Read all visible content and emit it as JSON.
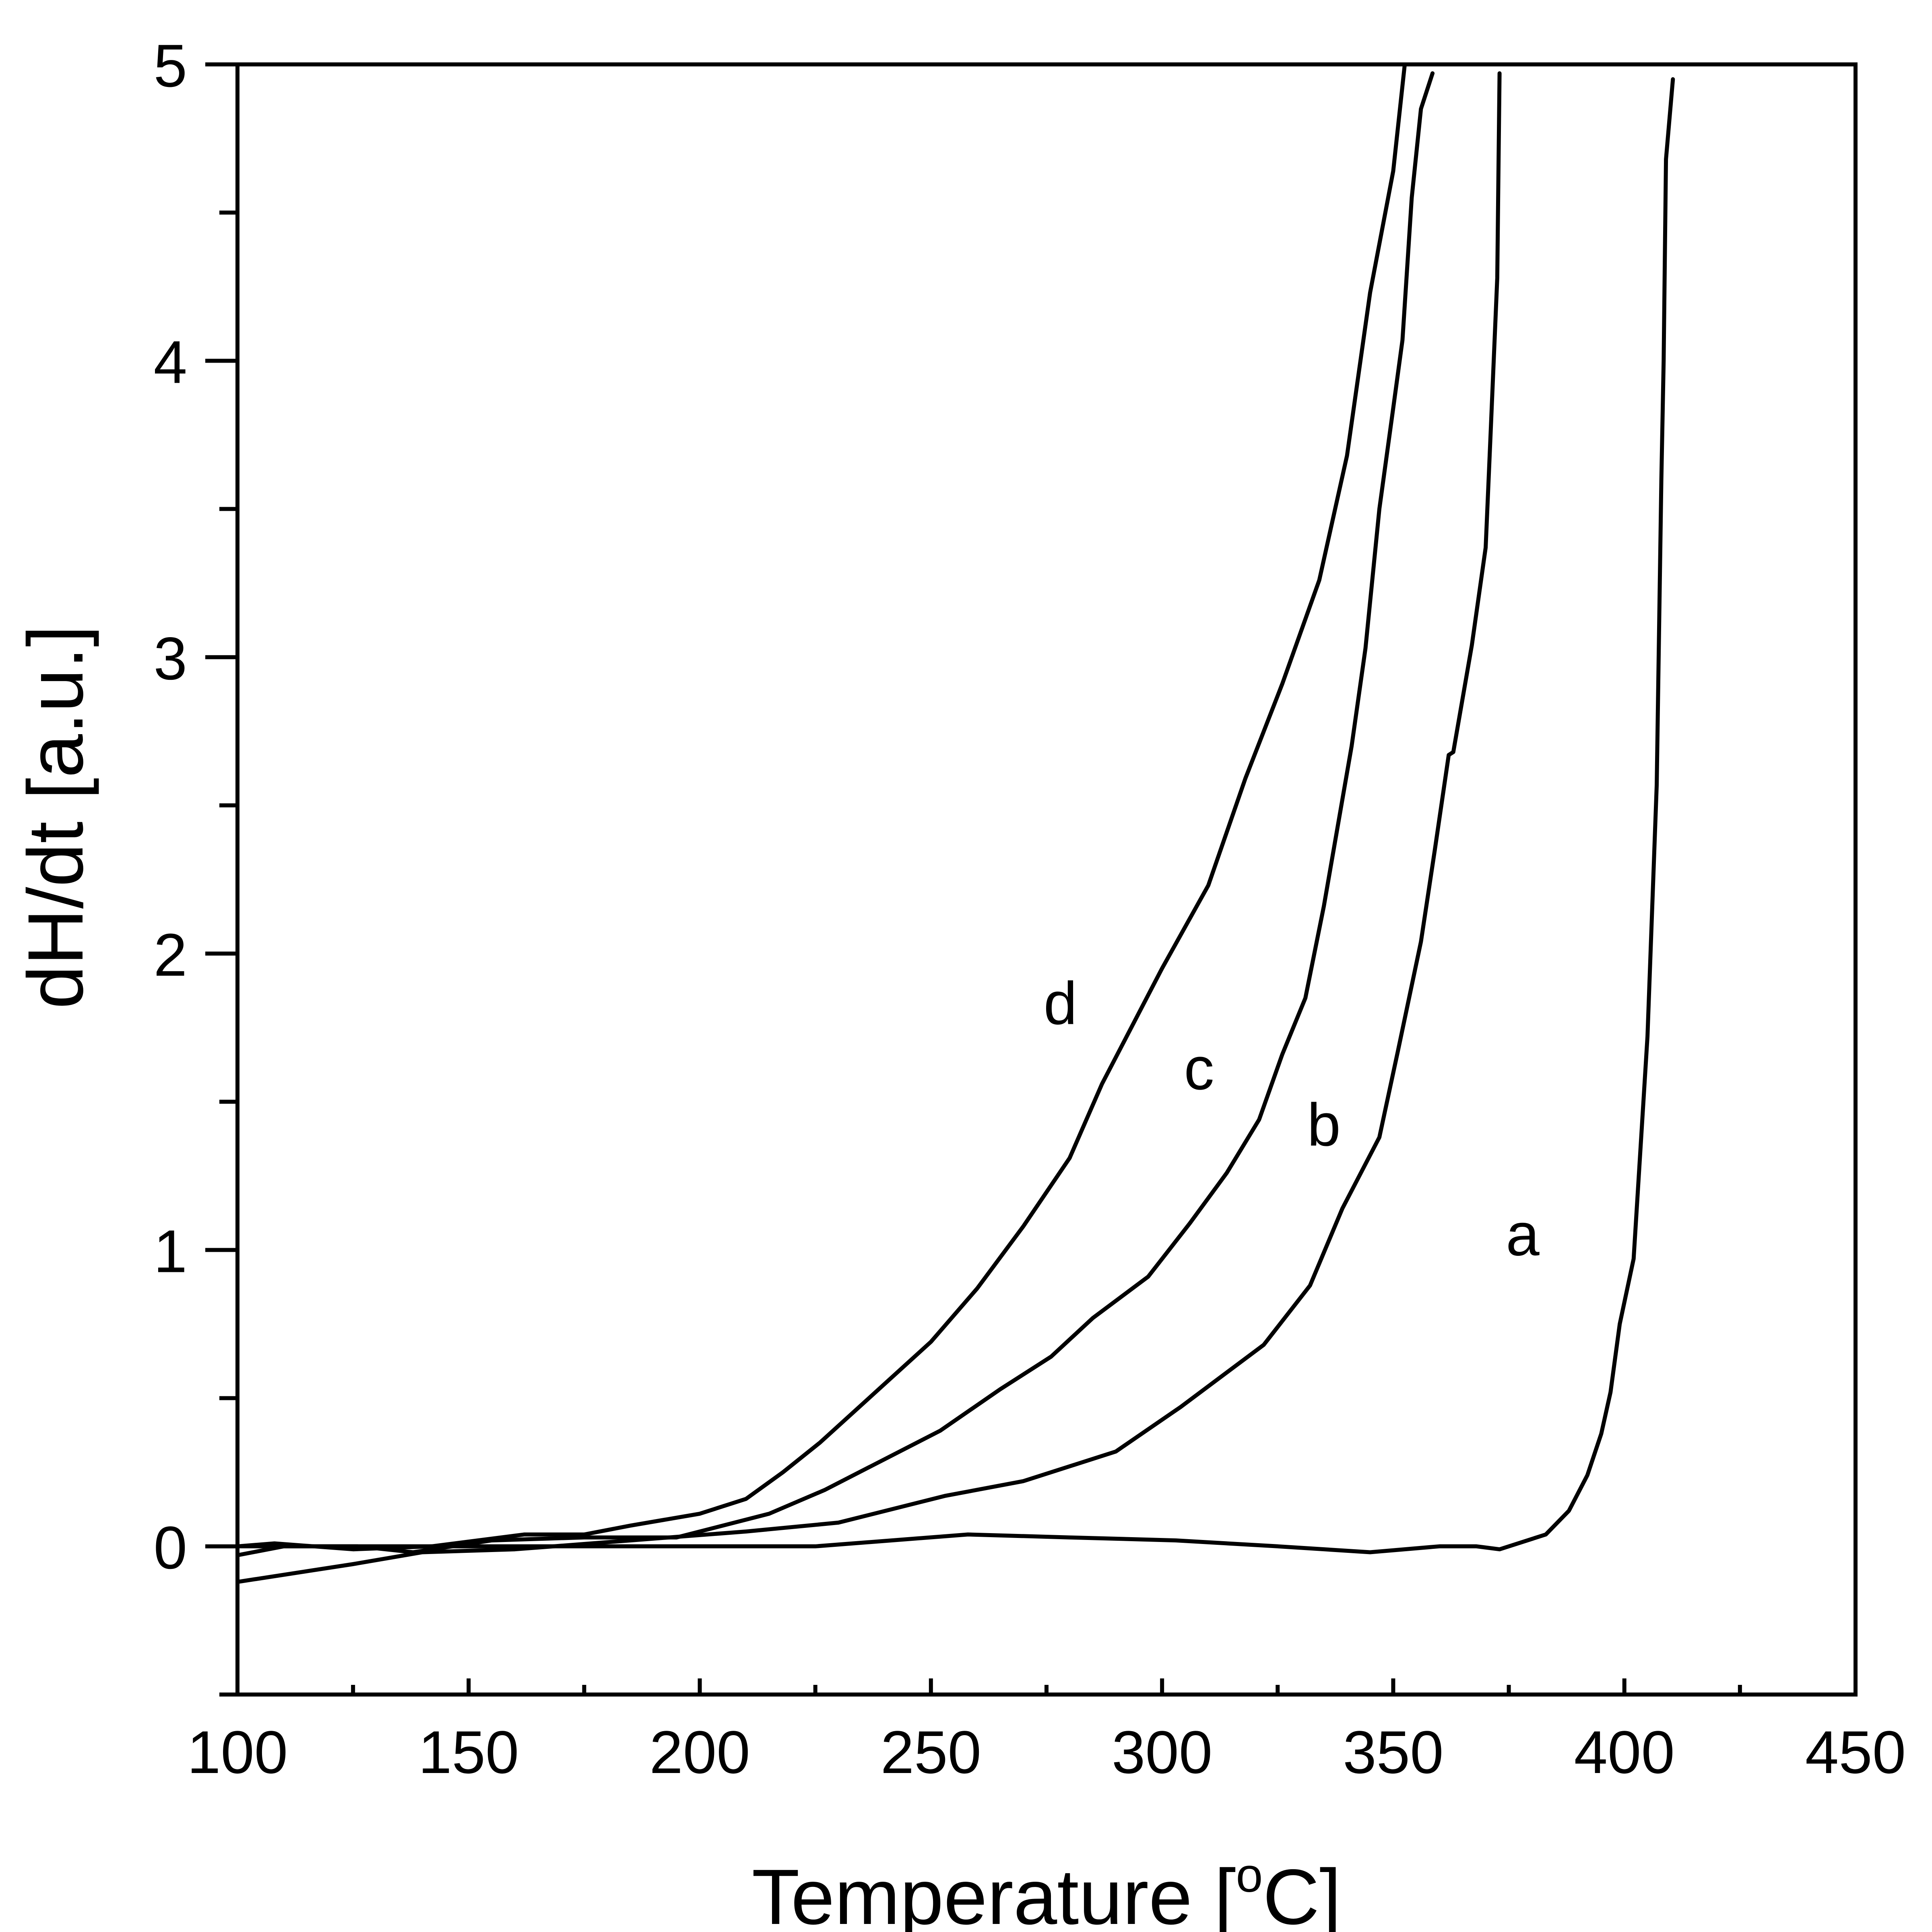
{
  "chart_data": {
    "type": "line",
    "title": "",
    "xlabel_main": "Temperature [",
    "xlabel_sup": "o",
    "xlabel_end": "C]",
    "ylabel": "dH/dt [a.u.]",
    "xlim": [
      100,
      450
    ],
    "ylim": [
      -0.5,
      5
    ],
    "x_ticks": [
      100,
      150,
      200,
      250,
      300,
      350,
      400,
      450
    ],
    "x_tick_labels": [
      "100",
      "150",
      "200",
      "250",
      "300",
      "350",
      "400",
      "450"
    ],
    "x_minor_ticks": [
      125,
      175,
      225,
      275,
      325,
      375,
      425
    ],
    "y_ticks": [
      0,
      1,
      2,
      3,
      4,
      5
    ],
    "y_tick_labels": [
      "0",
      "1",
      "2",
      "3",
      "4",
      "5"
    ],
    "y_minor_ticks": [
      -0.5,
      0.5,
      1.5,
      2.5,
      3.5,
      4.5
    ],
    "grid": false,
    "series": [
      {
        "name": "a",
        "label_position": [
          378,
          1.05
        ],
        "x": [
          100,
          108,
          125,
          142,
          160,
          180,
          200,
          225,
          258,
          280,
          303,
          325,
          345,
          360,
          368,
          373,
          383,
          388,
          392,
          395,
          397,
          399,
          402,
          405,
          407,
          408,
          408.5,
          409,
          410.5
        ],
        "y": [
          0.0,
          0.01,
          -0.01,
          0.0,
          0.0,
          0.0,
          0.0,
          0.0,
          0.04,
          0.03,
          0.02,
          0.0,
          -0.02,
          0.0,
          0.0,
          -0.01,
          0.04,
          0.12,
          0.24,
          0.38,
          0.52,
          0.75,
          0.97,
          1.72,
          2.57,
          3.6,
          4.0,
          4.68,
          4.95
        ]
      },
      {
        "name": "b",
        "label_position": [
          335,
          1.42
        ],
        "x": [
          100,
          125,
          140,
          160,
          185,
          210,
          230,
          253,
          270,
          290,
          304,
          322,
          332,
          339,
          347,
          351,
          356,
          359,
          362,
          363,
          367,
          370,
          371,
          372.5,
          373
        ],
        "y": [
          -0.12,
          -0.06,
          -0.02,
          -0.01,
          0.02,
          0.05,
          0.08,
          0.17,
          0.22,
          0.32,
          0.47,
          0.68,
          0.88,
          1.14,
          1.38,
          1.67,
          2.04,
          2.35,
          2.67,
          2.68,
          3.04,
          3.37,
          3.73,
          4.28,
          4.97
        ]
      },
      {
        "name": "c",
        "label_position": [
          308,
          1.61
        ],
        "x": [
          100,
          110,
          126,
          138,
          155,
          175,
          195,
          215,
          227,
          252,
          265,
          276,
          285,
          297,
          306,
          314,
          321,
          326,
          331,
          335,
          338,
          341,
          344,
          347,
          350,
          352,
          354,
          356,
          358.5
        ],
        "y": [
          -0.03,
          0.0,
          0.0,
          -0.02,
          0.02,
          0.03,
          0.03,
          0.11,
          0.19,
          0.39,
          0.53,
          0.64,
          0.77,
          0.91,
          1.09,
          1.26,
          1.44,
          1.66,
          1.85,
          2.16,
          2.43,
          2.7,
          3.03,
          3.5,
          3.84,
          4.07,
          4.55,
          4.85,
          4.97
        ]
      },
      {
        "name": "d",
        "label_position": [
          278,
          1.83
        ],
        "x": [
          100,
          125,
          142,
          162,
          175,
          185,
          200,
          210,
          218,
          226,
          250,
          260,
          270,
          280,
          287,
          300,
          310,
          318,
          326,
          334,
          340,
          345,
          350,
          352.5
        ],
        "y": [
          0.0,
          0.0,
          0.0,
          0.04,
          0.04,
          0.07,
          0.11,
          0.16,
          0.25,
          0.35,
          0.69,
          0.87,
          1.08,
          1.31,
          1.56,
          1.95,
          2.23,
          2.59,
          2.91,
          3.26,
          3.68,
          4.23,
          4.64,
          5.0
        ]
      }
    ]
  }
}
